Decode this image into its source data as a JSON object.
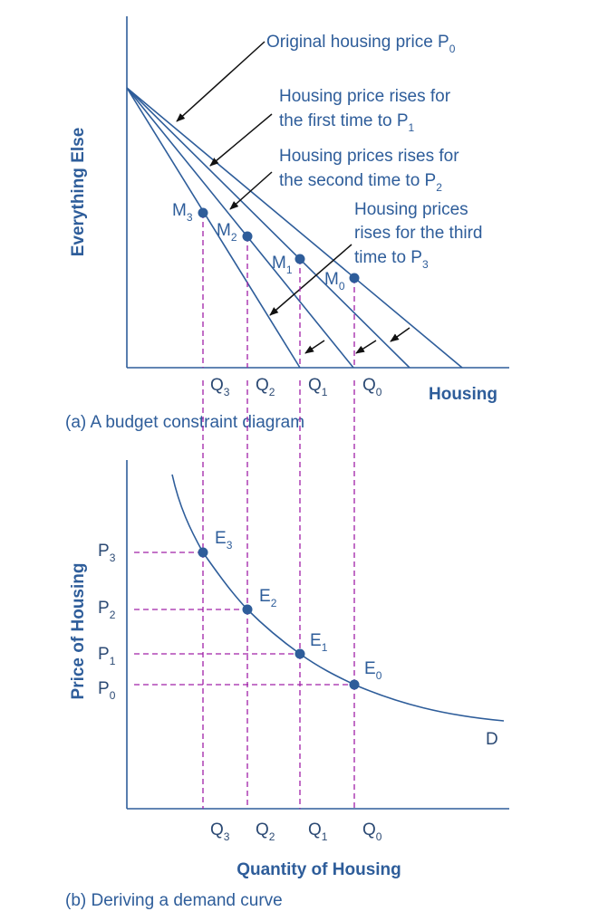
{
  "panel_a": {
    "caption": "(a) A budget constraint diagram",
    "y_axis_title": "Everything Else",
    "x_axis_title": "Housing",
    "annotations": [
      {
        "lines": [
          "Original housing price P"
        ],
        "subscript": "0"
      },
      {
        "lines": [
          "Housing price rises for",
          "the first time to P"
        ],
        "subscript": "1"
      },
      {
        "lines": [
          "Housing prices rises for",
          "the second time to P"
        ],
        "subscript": "2"
      },
      {
        "lines": [
          "Housing prices",
          "rises for the third",
          "time to P"
        ],
        "subscript": "3"
      }
    ],
    "points": [
      {
        "label": "M",
        "sub": "3"
      },
      {
        "label": "M",
        "sub": "2"
      },
      {
        "label": "M",
        "sub": "1"
      },
      {
        "label": "M",
        "sub": "0"
      }
    ],
    "x_ticks": [
      {
        "label": "Q",
        "sub": "3"
      },
      {
        "label": "Q",
        "sub": "2"
      },
      {
        "label": "Q",
        "sub": "1"
      },
      {
        "label": "Q",
        "sub": "0"
      }
    ]
  },
  "panel_b": {
    "caption": "(b) Deriving a demand curve",
    "y_axis_title": "Price of Housing",
    "x_axis_title": "Quantity of Housing",
    "curve_label": "D",
    "points": [
      {
        "label": "E",
        "sub": "3"
      },
      {
        "label": "E",
        "sub": "2"
      },
      {
        "label": "E",
        "sub": "1"
      },
      {
        "label": "E",
        "sub": "0"
      }
    ],
    "y_ticks": [
      {
        "label": "P",
        "sub": "3"
      },
      {
        "label": "P",
        "sub": "2"
      },
      {
        "label": "P",
        "sub": "1"
      },
      {
        "label": "P",
        "sub": "0"
      }
    ],
    "x_ticks": [
      {
        "label": "Q",
        "sub": "3"
      },
      {
        "label": "Q",
        "sub": "2"
      },
      {
        "label": "Q",
        "sub": "1"
      },
      {
        "label": "Q",
        "sub": "0"
      }
    ]
  },
  "colors": {
    "line": "#2e5d9a",
    "dashed": "#a020a8",
    "arrow": "#111111"
  }
}
